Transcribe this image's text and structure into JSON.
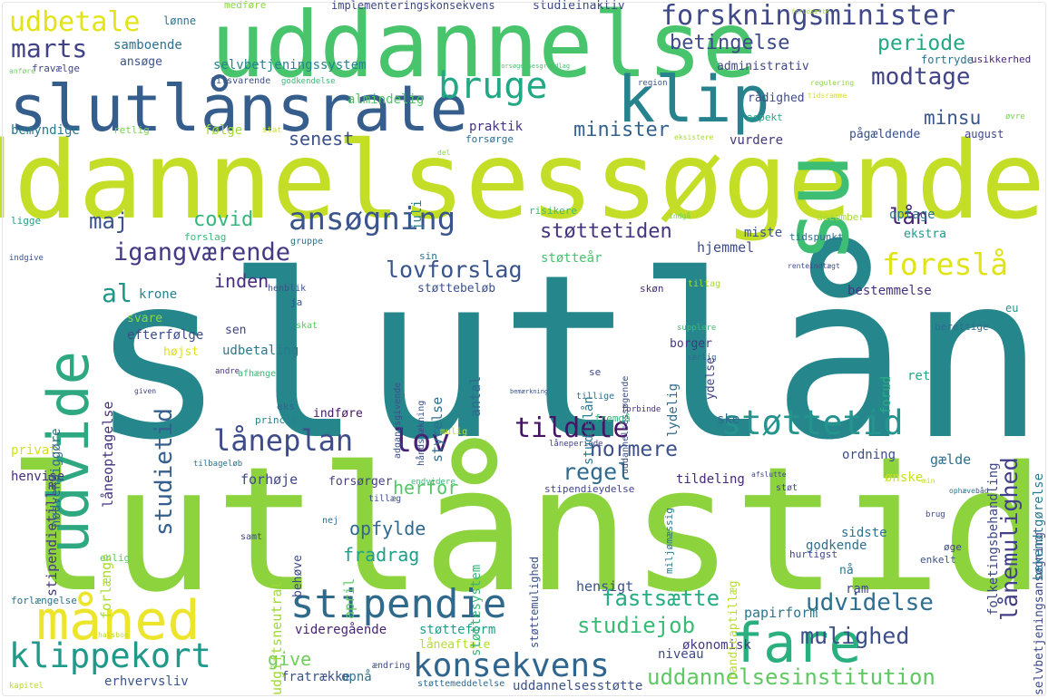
{
  "words": [
    {
      "text": "slutlån",
      "color": "#25878c"
    },
    {
      "text": "slutlånstid",
      "color": "#8dd33e"
    },
    {
      "text": "uddannelsessøgende",
      "color": "#c4de27"
    },
    {
      "text": "uddannelse",
      "color": "#48c46c"
    },
    {
      "text": "slutlånsrate",
      "color": "#355e8d"
    },
    {
      "text": "klip",
      "color": "#26838e"
    },
    {
      "text": "su",
      "color": "#3ebe73"
    },
    {
      "text": "måned",
      "color": "#ece52c"
    },
    {
      "text": "fare",
      "color": "#2ab07f"
    },
    {
      "text": "udvide",
      "color": "#2ea880"
    },
    {
      "text": "stipendie",
      "color": "#2f6a8d"
    },
    {
      "text": "klippekort",
      "color": "#1f9a8a"
    },
    {
      "text": "konsekvens",
      "color": "#30658e"
    },
    {
      "text": "uddannelsesinstitution",
      "color": "#5ec962"
    },
    {
      "text": "forskningsminister",
      "color": "#3f4889"
    },
    {
      "text": "bruge",
      "color": "#22a884"
    },
    {
      "text": "ansøgning",
      "color": "#39558c"
    },
    {
      "text": "foreslå",
      "color": "#dfe318"
    },
    {
      "text": "støttetid",
      "color": "#25948e"
    },
    {
      "text": "lov",
      "color": "#482173"
    },
    {
      "text": "tildele",
      "color": "#471366"
    },
    {
      "text": "låneplan",
      "color": "#3e4c8a"
    },
    {
      "text": "udbetale",
      "color": "#e3e418"
    },
    {
      "text": "marts",
      "color": "#414287"
    },
    {
      "text": "modtage",
      "color": "#414487"
    },
    {
      "text": "studietid",
      "color": "#355f8d"
    },
    {
      "text": "lovforslag",
      "color": "#3a548c"
    },
    {
      "text": "igangværende",
      "color": "#443983"
    },
    {
      "text": "støttetiden",
      "color": "#453581"
    },
    {
      "text": "covid",
      "color": "#35b779"
    },
    {
      "text": "maj",
      "color": "#3a538b"
    },
    {
      "text": "al",
      "color": "#1f968b"
    },
    {
      "text": "normere",
      "color": "#3c508b"
    },
    {
      "text": "udvidelse",
      "color": "#2e6e8e"
    },
    {
      "text": "mulighed",
      "color": "#3c4f8a"
    },
    {
      "text": "lånemulighed",
      "color": "#424086"
    },
    {
      "text": "regel",
      "color": "#2f6b8e"
    },
    {
      "text": "fastsætte",
      "color": "#26ad81"
    },
    {
      "text": "studiejob",
      "color": "#3aba76"
    },
    {
      "text": "minister",
      "color": "#33638d"
    },
    {
      "text": "senest",
      "color": "#3b518b"
    },
    {
      "text": "minsu",
      "color": "#39568c"
    },
    {
      "text": "periode",
      "color": "#22a884"
    },
    {
      "text": "betingelse",
      "color": "#3e4989"
    },
    {
      "text": "lån",
      "color": "#482475"
    },
    {
      "text": "inden",
      "color": "#472d7b"
    },
    {
      "text": "give",
      "color": "#6ece58"
    },
    {
      "text": "herfor",
      "color": "#54c568"
    },
    {
      "text": "fradrag",
      "color": "#1f9e89"
    },
    {
      "text": "opfylde",
      "color": "#31688e"
    },
    {
      "text": "papirform",
      "color": "#2a768e"
    },
    {
      "text": "hensigt",
      "color": "#3b528b"
    },
    {
      "text": "studieinaktiv",
      "color": "#3e4989"
    },
    {
      "text": "implementeringskonsekvens",
      "color": "#404688"
    },
    {
      "text": "medføre",
      "color": "#8bd646"
    },
    {
      "text": "lønne",
      "color": "#2c738e"
    },
    {
      "text": "samboende",
      "color": "#2d708e"
    },
    {
      "text": "ansøge",
      "color": "#3b528b"
    },
    {
      "text": "selvbetjeningssystem",
      "color": "#25848e"
    },
    {
      "text": "administrativ",
      "color": "#3f4788"
    },
    {
      "text": "fortryde",
      "color": "#2c718e"
    },
    {
      "text": "usikkerhed",
      "color": "#482878"
    },
    {
      "text": "fravælge",
      "color": "#3e4989"
    },
    {
      "text": "anføre",
      "color": "#73d056"
    },
    {
      "text": "tilsvarende",
      "color": "#3d4e8a"
    },
    {
      "text": "godkendelse",
      "color": "#3aba76"
    },
    {
      "text": "almindelig",
      "color": "#52c569"
    },
    {
      "text": "rådighed",
      "color": "#3f4889"
    },
    {
      "text": "praktik",
      "color": "#46327e"
    },
    {
      "text": "aspekt",
      "color": "#22a785"
    },
    {
      "text": "forsørge",
      "color": "#2d708e"
    },
    {
      "text": "vurdere",
      "color": "#453882"
    },
    {
      "text": "pågældende",
      "color": "#3b518b"
    },
    {
      "text": "bemyndige",
      "color": "#2a788e"
    },
    {
      "text": "retlig",
      "color": "#7ad151"
    },
    {
      "text": "følge",
      "color": "#a2da37"
    },
    {
      "text": "august",
      "color": "#3f4788"
    },
    {
      "text": "juli",
      "color": "#26828e"
    },
    {
      "text": "optage",
      "color": "#2c728e"
    },
    {
      "text": "ekstra",
      "color": "#1f988b"
    },
    {
      "text": "hjemmel",
      "color": "#3d4d8a"
    },
    {
      "text": "miste",
      "color": "#3a548c"
    },
    {
      "text": "tidspunkt",
      "color": "#2d708e"
    },
    {
      "text": "december",
      "color": "#a8db34"
    },
    {
      "text": "risikere",
      "color": "#3aba76"
    },
    {
      "text": "forslag",
      "color": "#3ab977"
    },
    {
      "text": "gruppe",
      "color": "#2a778e"
    },
    {
      "text": "ligge",
      "color": "#1f9f88"
    },
    {
      "text": "støtteår",
      "color": "#4ac16d"
    },
    {
      "text": "støttebeløb",
      "color": "#3b518b"
    },
    {
      "text": "krone",
      "color": "#26828e"
    },
    {
      "text": "svare",
      "color": "#8bd646"
    },
    {
      "text": "efterfølge",
      "color": "#3d4d8a"
    },
    {
      "text": "højst",
      "color": "#dde318"
    },
    {
      "text": "udbetaling",
      "color": "#2a778e"
    },
    {
      "text": "sen",
      "color": "#414287"
    },
    {
      "text": "ja",
      "color": "#3b528b"
    },
    {
      "text": "bestemmelse",
      "color": "#46337f"
    },
    {
      "text": "eu",
      "color": "#1f9a8a"
    },
    {
      "text": "berettige",
      "color": "#2f6c8e"
    },
    {
      "text": "borger",
      "color": "#453781"
    },
    {
      "text": "ret",
      "color": "#22a884"
    },
    {
      "text": "forud",
      "color": "#26ad81"
    },
    {
      "text": "ske",
      "color": "#31688e"
    },
    {
      "text": "ordning",
      "color": "#3d4d8a"
    },
    {
      "text": "gælde",
      "color": "#2d708e"
    },
    {
      "text": "ønske",
      "color": "#c8e020"
    },
    {
      "text": "tildeling",
      "color": "#482878"
    },
    {
      "text": "forhøje",
      "color": "#3f4788"
    },
    {
      "text": "henvise",
      "color": "#472f7d"
    },
    {
      "text": "privat",
      "color": "#d2e21b"
    },
    {
      "text": "indføre",
      "color": "#481668"
    },
    {
      "text": "princip",
      "color": "#27808e"
    },
    {
      "text": "eks",
      "color": "#31688e"
    },
    {
      "text": "afhænge",
      "color": "#3aba76"
    },
    {
      "text": "sidste",
      "color": "#2c728e"
    },
    {
      "text": "godkende",
      "color": "#2e6f8e"
    },
    {
      "text": "nå",
      "color": "#2a778e"
    },
    {
      "text": "ram",
      "color": "#3e4a89"
    },
    {
      "text": "hurtigst",
      "color": "#3f4788"
    },
    {
      "text": "enkelt",
      "color": "#3b528b"
    },
    {
      "text": "øge",
      "color": "#404588"
    },
    {
      "text": "videregående",
      "color": "#482475"
    },
    {
      "text": "støtteform",
      "color": "#1f9e89"
    },
    {
      "text": "låneaftale",
      "color": "#b5de2b"
    },
    {
      "text": "økonomisk",
      "color": "#453882"
    },
    {
      "text": "niveau",
      "color": "#3e4a89"
    },
    {
      "text": "erhvervsliv",
      "color": "#3a548c"
    },
    {
      "text": "fratrække",
      "color": "#3b518b"
    },
    {
      "text": "opnå",
      "color": "#2c738e"
    },
    {
      "text": "uddannelsesstøtte",
      "color": "#3b528b"
    },
    {
      "text": "støttemeddelelse",
      "color": "#2f6a8d"
    },
    {
      "text": "ændring",
      "color": "#3d4d8a"
    },
    {
      "text": "forlængelse",
      "color": "#2c728e"
    },
    {
      "text": "kapitel",
      "color": "#b8de29"
    },
    {
      "text": "enlig",
      "color": "#5ec962"
    },
    {
      "text": "samt",
      "color": "#3e4989"
    },
    {
      "text": "nej",
      "color": "#2e6e8e"
    },
    {
      "text": "forsørger",
      "color": "#433e85"
    },
    {
      "text": "tillæg",
      "color": "#3b528b"
    },
    {
      "text": "tilbageløb",
      "color": "#2d708e"
    },
    {
      "text": "stipendieydelse",
      "color": "#404588"
    },
    {
      "text": "støt",
      "color": "#3f4788"
    },
    {
      "text": "brug",
      "color": "#3f4889"
    },
    {
      "text": "henblik",
      "color": "#3b528b"
    },
    {
      "text": "tiltag",
      "color": "#a8db34"
    },
    {
      "text": "skøn",
      "color": "#472e7c"
    },
    {
      "text": "skat",
      "color": "#5ec962"
    },
    {
      "text": "supplere",
      "color": "#3ebc74"
    },
    {
      "text": "særlig",
      "color": "#2f6b8e"
    },
    {
      "text": "se",
      "color": "#3e4989"
    },
    {
      "text": "tillige",
      "color": "#2d718e"
    },
    {
      "text": "fremgå",
      "color": "#37b878"
    },
    {
      "text": "mulig",
      "color": "#b5de2b"
    },
    {
      "text": "låneperiode",
      "color": "#404588"
    },
    {
      "text": "stipendietillæg",
      "color": "#453882"
    },
    {
      "text": "nødvendiggøre",
      "color": "#2f6c8e"
    },
    {
      "text": "låneoptagelse",
      "color": "#46327e"
    },
    {
      "text": "studielån",
      "color": "#2a788e"
    },
    {
      "text": "antal",
      "color": "#31688e"
    },
    {
      "text": "styrelse",
      "color": "#2e6e8e"
    },
    {
      "text": "ydelse",
      "color": "#3f4889"
    },
    {
      "text": "lydelig",
      "color": "#2f6b8e"
    },
    {
      "text": "uddannelsessøgende",
      "color": "#3b528b"
    },
    {
      "text": "adgangsgivende",
      "color": "#3d4e8a"
    },
    {
      "text": "håndsrækning",
      "color": "#3b518b"
    },
    {
      "text": "folketingsbehandling",
      "color": "#3f4788"
    },
    {
      "text": "selvbetjeningsansøgning",
      "color": "#3e4989"
    },
    {
      "text": "bekendtgørelse",
      "color": "#2a788e"
    },
    {
      "text": "støttesystem",
      "color": "#35b779"
    },
    {
      "text": "støttemulighed",
      "color": "#3b528b"
    },
    {
      "text": "handicaptillæg",
      "color": "#b8de29"
    },
    {
      "text": "udgiftsneutral",
      "color": "#a0da39"
    },
    {
      "text": "april",
      "color": "#5ec962"
    },
    {
      "text": "behøve",
      "color": "#3e4a89"
    },
    {
      "text": "forlænge",
      "color": "#aadc32"
    },
    {
      "text": "miljømæssig",
      "color": "#2a788e"
    }
  ],
  "tiny_words": [
    {
      "text": "forudsætte",
      "color": "#a5db36"
    },
    {
      "text": "forsøgelsesgrundlag",
      "color": "#4ac16d"
    },
    {
      "text": "regulering",
      "color": "#8fd744"
    },
    {
      "text": "region",
      "color": "#3a548c"
    },
    {
      "text": "tidsramme",
      "color": "#d8e219"
    },
    {
      "text": "øvre",
      "color": "#7ad151"
    },
    {
      "text": "eksistere",
      "color": "#a8db34"
    },
    {
      "text": "stat",
      "color": "#d2e21b"
    },
    {
      "text": "del",
      "color": "#8fd744"
    },
    {
      "text": "indgå",
      "color": "#73d056"
    },
    {
      "text": "sin",
      "color": "#2c728e"
    },
    {
      "text": "renteindtægt",
      "color": "#3e4c8a"
    },
    {
      "text": "indgive",
      "color": "#3b528b"
    },
    {
      "text": "andre",
      "color": "#46327e"
    },
    {
      "text": "given",
      "color": "#404688"
    },
    {
      "text": "bemærkning",
      "color": "#3a548c"
    },
    {
      "text": "forbinde",
      "color": "#472f7d"
    },
    {
      "text": "afslutte",
      "color": "#3f4788"
    },
    {
      "text": "min",
      "color": "#c0df25"
    },
    {
      "text": "ophæve",
      "color": "#2a788e"
    },
    {
      "text": "båd",
      "color": "#3a548c"
    },
    {
      "text": "endvidere",
      "color": "#3aba76"
    },
    {
      "text": "halsboe",
      "color": "#c2df23"
    }
  ]
}
